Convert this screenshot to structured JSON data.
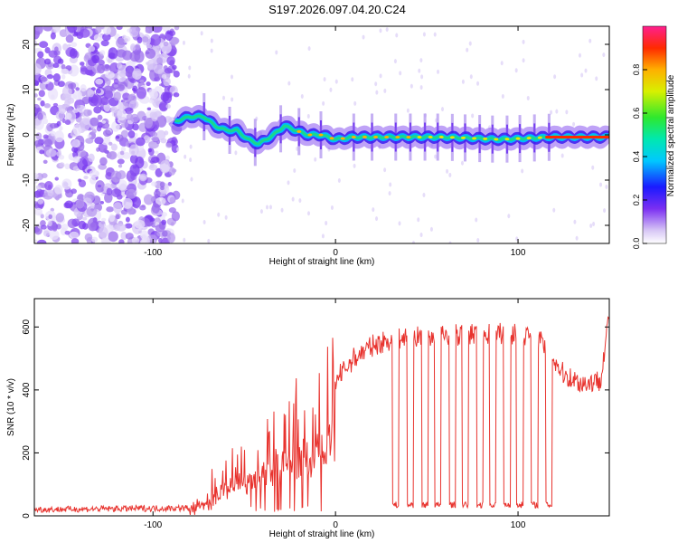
{
  "title": "S197.2026.097.04.20.C24",
  "chart_data": [
    {
      "type": "heatmap",
      "name": "spectrogram",
      "xlabel": "Height of straight line (km)",
      "ylabel": "Frequency (Hz)",
      "xlim": [
        -165,
        150
      ],
      "ylim": [
        -24,
        24
      ],
      "xticks": [
        -100,
        0,
        100
      ],
      "yticks": [
        -20,
        -10,
        0,
        10,
        20
      ],
      "colorbar": {
        "label": "Normalized spectral amplitude",
        "range": [
          0,
          1
        ],
        "ticks": [
          0.0,
          0.2,
          0.4,
          0.6,
          0.8
        ]
      },
      "noise_region_x": [
        -165,
        -87
      ],
      "signal_track": {
        "x": [
          -88,
          -80,
          -72,
          -66,
          -60,
          -54,
          -48,
          -42,
          -38,
          -34,
          -28,
          -22,
          -15,
          -8,
          0,
          10,
          30,
          60,
          90,
          120,
          148
        ],
        "freq": [
          3,
          4,
          4,
          2,
          1,
          1,
          -1,
          -2,
          -1,
          0,
          2,
          1,
          0,
          0,
          -1,
          -0.5,
          -0.5,
          -0.5,
          -1,
          -0.5,
          -0.5
        ]
      }
    },
    {
      "type": "line",
      "name": "snr",
      "xlabel": "Height of straight line (km)",
      "ylabel": "SNR (10 * v/v)",
      "xlim": [
        -165,
        150
      ],
      "ylim": [
        0,
        690
      ],
      "xticks": [
        -100,
        0,
        100
      ],
      "yticks": [
        0,
        200,
        400,
        600
      ],
      "color": "#e8332e",
      "series": [
        {
          "name": "SNR envelope",
          "x": [
            -165,
            -80,
            -70,
            -60,
            -50,
            -40,
            -30,
            -20,
            -10,
            0,
            10,
            20,
            30,
            50,
            70,
            90,
            110,
            125,
            135,
            145,
            150
          ],
          "values": [
            20,
            25,
            90,
            150,
            190,
            240,
            280,
            330,
            380,
            430,
            500,
            540,
            560,
            570,
            575,
            580,
            575,
            450,
            420,
            430,
            640
          ]
        }
      ],
      "dropouts_x": [
        33,
        41,
        49,
        56,
        64,
        71,
        79,
        86,
        94,
        101,
        109,
        117
      ],
      "dropout_level": 35
    }
  ]
}
